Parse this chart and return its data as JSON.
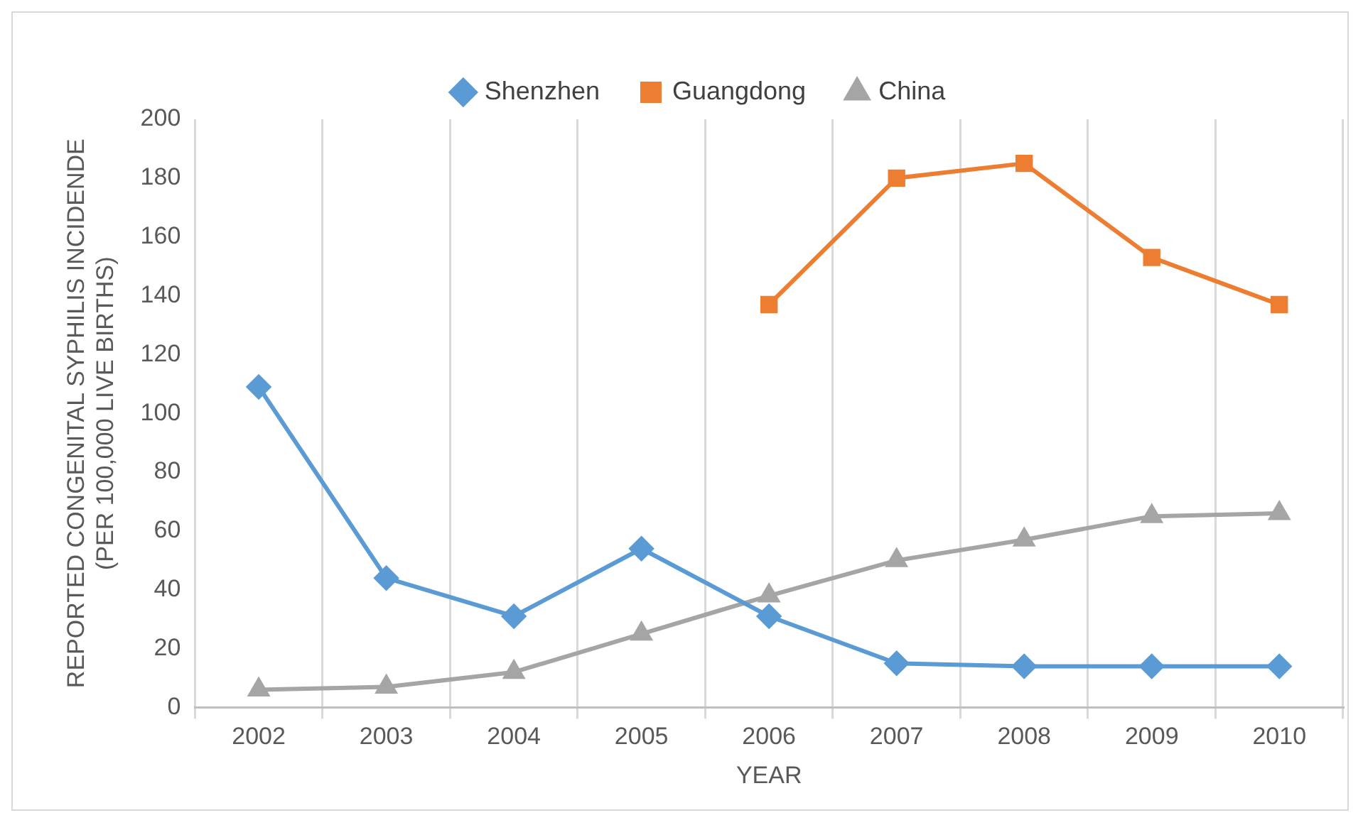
{
  "chart_data": {
    "type": "line",
    "xlabel": "YEAR",
    "ylabel": "REPORTED CONGENITAL SYPHILIS INCIDENDE (PER 100,000 LIVE BIRTHS)",
    "categories": [
      "2002",
      "2003",
      "2004",
      "2005",
      "2006",
      "2007",
      "2008",
      "2009",
      "2010"
    ],
    "series": [
      {
        "name": "Shenzhen",
        "color": "#5b9bd5",
        "marker": "diamond",
        "values": [
          109,
          44,
          31,
          54,
          31,
          15,
          14,
          14,
          14
        ]
      },
      {
        "name": "Guangdong",
        "color": "#ed7d31",
        "marker": "square",
        "values": [
          null,
          null,
          null,
          null,
          137,
          180,
          185,
          153,
          137
        ]
      },
      {
        "name": "China",
        "color": "#a5a5a5",
        "marker": "triangle",
        "values": [
          6,
          7,
          12,
          25,
          38,
          50,
          57,
          65,
          66
        ]
      }
    ],
    "ylim": [
      0,
      200
    ],
    "yticks": [
      0,
      20,
      40,
      60,
      80,
      100,
      120,
      140,
      160,
      180,
      200
    ],
    "grid": "x",
    "legend": "top",
    "line_style": "solid"
  }
}
